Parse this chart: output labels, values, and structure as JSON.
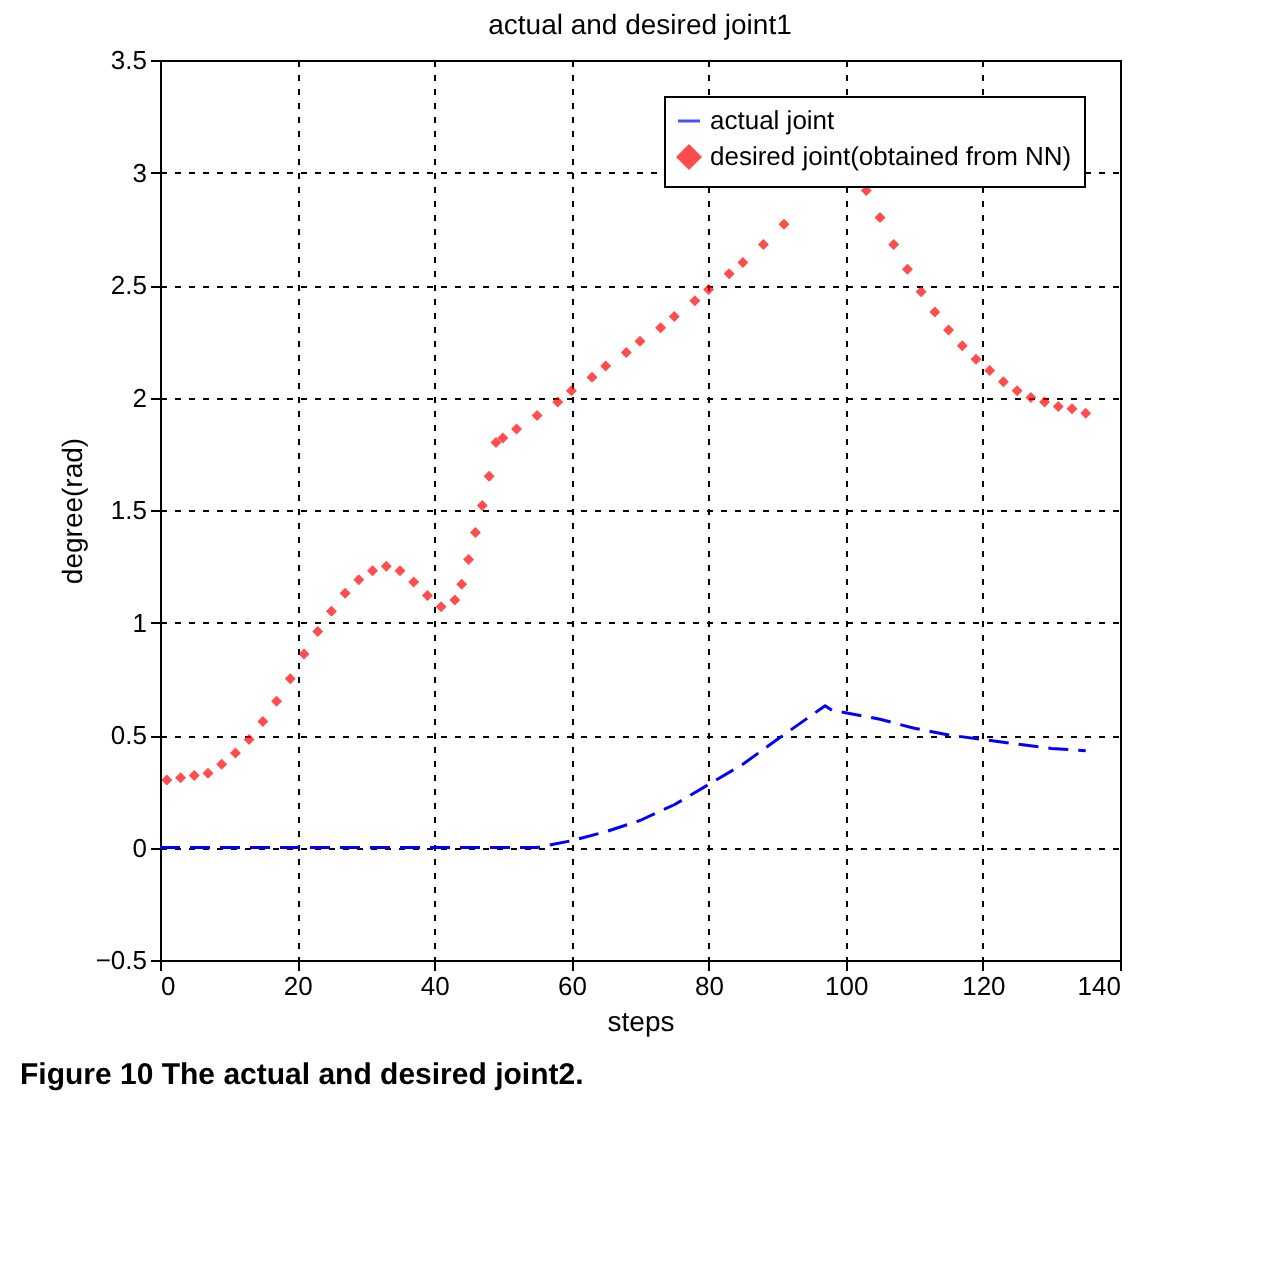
{
  "chart_data": {
    "type": "line",
    "title": "actual and desired joint1",
    "xlabel": "steps",
    "ylabel": "degree(rad)",
    "xlim": [
      0,
      140
    ],
    "xticks": [
      0,
      20,
      40,
      60,
      80,
      100,
      120,
      140
    ],
    "ylim": [
      -0.5,
      3.5
    ],
    "yticks": [
      -0.5,
      0,
      0.5,
      1,
      1.5,
      2,
      2.5,
      3,
      3.5
    ],
    "grid": true,
    "legend": "top right",
    "annotations": [
      "Figure 10 The actual and desired joint2."
    ],
    "series": [
      {
        "name": "actual joint",
        "color": "#0000ff",
        "line_style": "dashed",
        "marker": "none",
        "x": [
          0,
          10,
          20,
          30,
          40,
          50,
          55,
          60,
          65,
          70,
          75,
          80,
          85,
          90,
          97,
          98,
          105,
          110,
          115,
          120,
          125,
          130,
          135
        ],
        "values": [
          0,
          0,
          0,
          0,
          0,
          0,
          0,
          0.03,
          0.07,
          0.12,
          0.19,
          0.28,
          0.37,
          0.48,
          0.63,
          0.61,
          0.57,
          0.53,
          0.5,
          0.48,
          0.46,
          0.44,
          0.43
        ]
      },
      {
        "name": "desired joint(obtained from NN)",
        "type": "scatter",
        "color": "#ff0000",
        "marker": "diamond",
        "x": [
          1,
          3,
          5,
          7,
          9,
          11,
          13,
          15,
          17,
          19,
          21,
          23,
          25,
          27,
          29,
          31,
          33,
          35,
          37,
          39,
          41,
          43,
          44,
          45,
          46,
          47,
          48,
          49,
          50,
          52,
          55,
          58,
          60,
          63,
          65,
          68,
          70,
          73,
          75,
          78,
          80,
          83,
          85,
          88,
          91,
          103,
          105,
          107,
          109,
          111,
          113,
          115,
          117,
          119,
          121,
          123,
          125,
          127,
          129,
          131,
          133,
          135
        ],
        "values": [
          0.3,
          0.31,
          0.32,
          0.33,
          0.37,
          0.42,
          0.48,
          0.56,
          0.65,
          0.75,
          0.86,
          0.96,
          1.05,
          1.13,
          1.19,
          1.23,
          1.25,
          1.23,
          1.18,
          1.12,
          1.07,
          1.1,
          1.17,
          1.28,
          1.4,
          1.52,
          1.65,
          1.8,
          1.82,
          1.86,
          1.92,
          1.98,
          2.03,
          2.09,
          2.14,
          2.2,
          2.25,
          2.31,
          2.36,
          2.43,
          2.48,
          2.55,
          2.6,
          2.68,
          2.77,
          2.92,
          2.8,
          2.68,
          2.57,
          2.47,
          2.38,
          2.3,
          2.23,
          2.17,
          2.12,
          2.07,
          2.03,
          2.0,
          1.98,
          1.96,
          1.95,
          1.93
        ]
      }
    ]
  }
}
